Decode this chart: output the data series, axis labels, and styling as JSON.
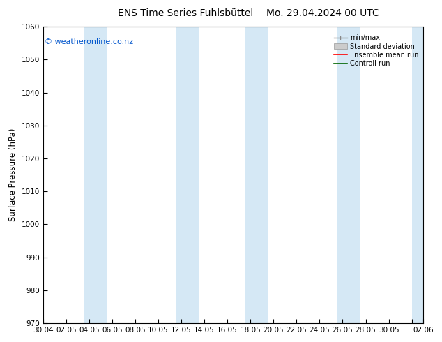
{
  "title_left": "ENS Time Series Fuhlsbüttel",
  "title_right": "Mo. 29.04.2024 00 UTC",
  "ylabel": "Surface Pressure (hPa)",
  "ylim": [
    970,
    1060
  ],
  "yticks": [
    970,
    980,
    990,
    1000,
    1010,
    1020,
    1030,
    1040,
    1050,
    1060
  ],
  "xtick_labels": [
    "30.04",
    "02.05",
    "04.05",
    "06.05",
    "08.05",
    "10.05",
    "12.05",
    "14.05",
    "16.05",
    "18.05",
    "20.05",
    "22.05",
    "24.05",
    "26.05",
    "28.05",
    "30.05",
    "",
    "02.06"
  ],
  "xtick_positions": [
    0,
    2,
    4,
    6,
    8,
    10,
    12,
    14,
    16,
    18,
    20,
    22,
    24,
    26,
    28,
    30,
    32,
    33
  ],
  "xlim": [
    0,
    33
  ],
  "watermark": "© weatheronline.co.nz",
  "legend_items": [
    "min/max",
    "Standard deviation",
    "Ensemble mean run",
    "Controll run"
  ],
  "band_color": "#d5e8f5",
  "band_alpha": 1.0,
  "background_color": "#ffffff",
  "title_fontsize": 10,
  "tick_fontsize": 7.5,
  "ylabel_fontsize": 8.5,
  "legend_fontsize": 7,
  "watermark_fontsize": 8,
  "band_starts": [
    3.5,
    11.5,
    17.5,
    25.5,
    32.0
  ],
  "band_ends": [
    5.5,
    13.5,
    19.5,
    27.5,
    33.0
  ]
}
